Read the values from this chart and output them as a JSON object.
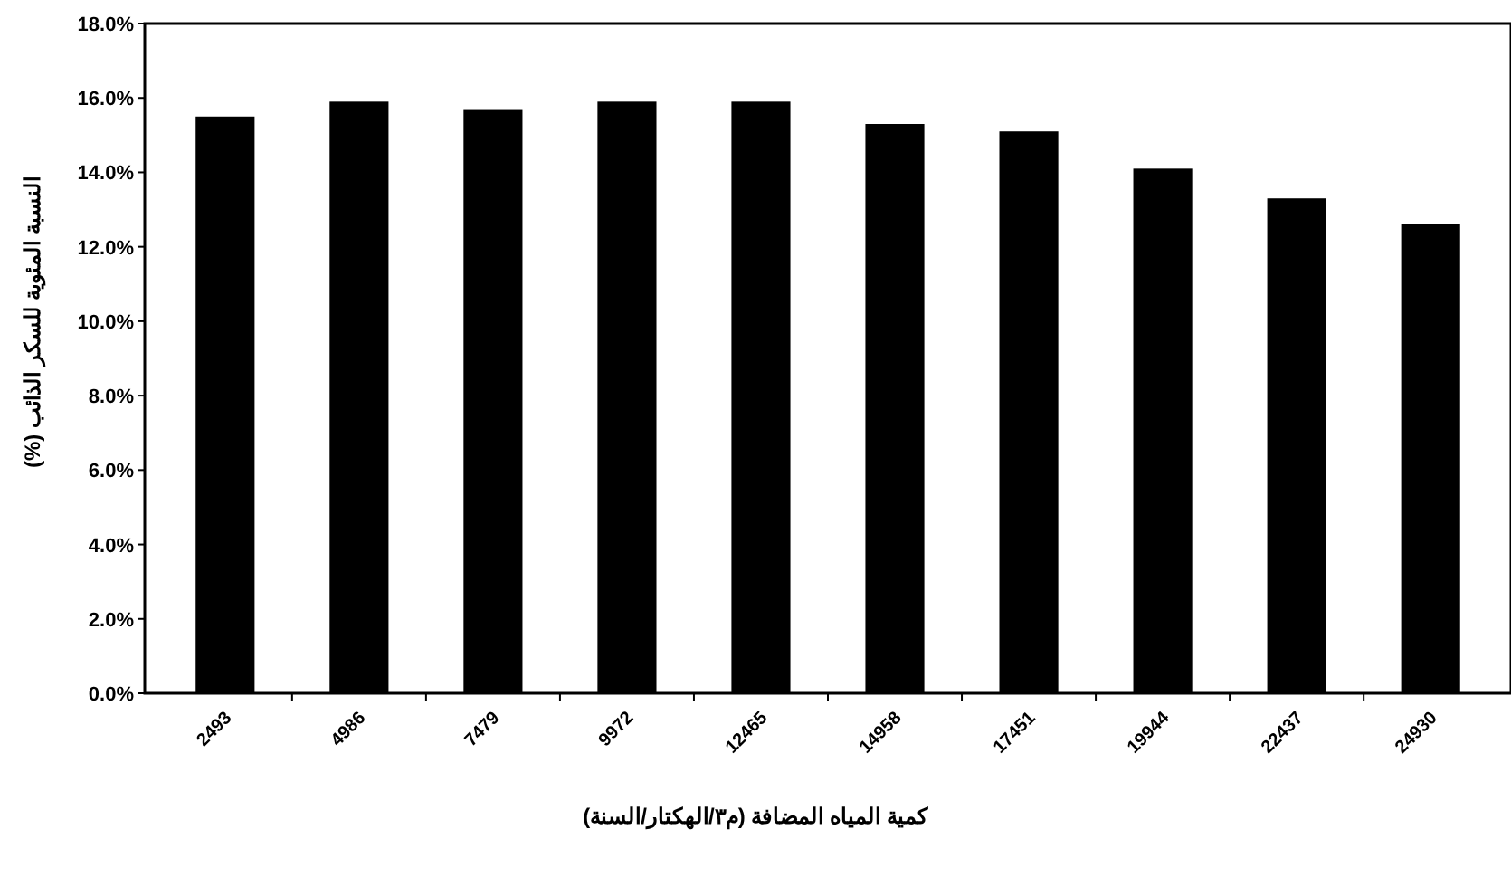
{
  "chart_data": {
    "type": "bar",
    "xlabel": "كمية المياه المضافة (م٣/الهكتار/السنة)",
    "ylabel": "النسبة المئوية للسكر الذائب (%)",
    "categories": [
      "2493",
      "4986",
      "7479",
      "9972",
      "12465",
      "14958",
      "17451",
      "19944",
      "22437",
      "24930"
    ],
    "values": [
      15.5,
      15.9,
      15.7,
      15.9,
      15.9,
      15.3,
      15.1,
      14.1,
      13.3,
      12.6
    ],
    "color": "#000000",
    "ylim": [
      0,
      18
    ],
    "yticks": [
      {
        "value": 0,
        "label": "0.0%"
      },
      {
        "value": 2,
        "label": "2.0%"
      },
      {
        "value": 4,
        "label": "4.0%"
      },
      {
        "value": 6,
        "label": "6.0%"
      },
      {
        "value": 8,
        "label": "8.0%"
      },
      {
        "value": 10,
        "label": "10.0%"
      },
      {
        "value": 12,
        "label": "12.0%"
      },
      {
        "value": 14,
        "label": "14.0%"
      },
      {
        "value": 16,
        "label": "16.0%"
      },
      {
        "value": 18,
        "label": "18.0%"
      }
    ]
  }
}
